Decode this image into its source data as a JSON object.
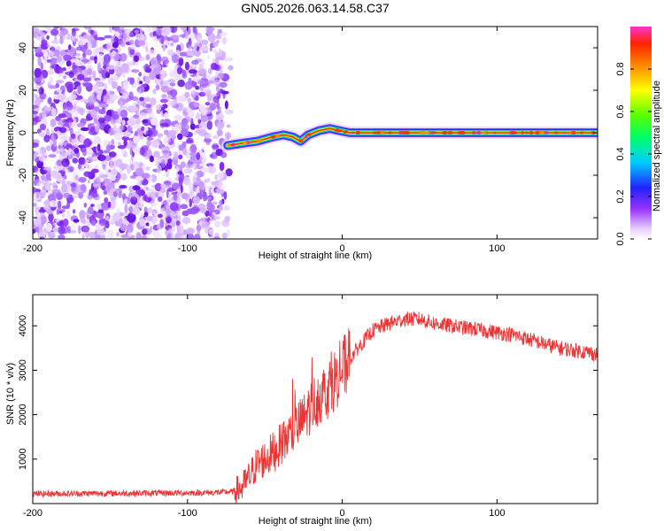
{
  "title": "GN05.2026.063.14.58.C37",
  "colors": {
    "snr_line": "#ee3333",
    "ridge_core": "#ff2222",
    "axis": "#000000"
  },
  "chart_data": [
    {
      "type": "heatmap",
      "name": "spectrogram",
      "xlabel": "Height of straight line (km)",
      "ylabel": "Frequency (Hz)",
      "xlim": [
        -200,
        165
      ],
      "ylim": [
        -50,
        50
      ],
      "xticks": [
        -200,
        -100,
        0,
        100
      ],
      "yticks": [
        -40,
        -20,
        0,
        20,
        40
      ],
      "noise_region_x": [
        -200,
        -72
      ],
      "ridge": {
        "x": [
          -74,
          -65,
          -55,
          -45,
          -38,
          -32,
          -27,
          -22,
          -15,
          -8,
          -2,
          5,
          40,
          100,
          165
        ],
        "y": [
          -6,
          -5,
          -4,
          -2,
          -1,
          -2,
          -4,
          -1,
          1,
          2,
          1,
          0,
          0,
          0,
          0
        ]
      },
      "colorbar": {
        "label": "Normalized spectral amplitude",
        "range": [
          0,
          1
        ],
        "ticks": [
          "0.0",
          "0.2",
          "0.4",
          "0.6",
          "0.8"
        ],
        "tick_values": [
          0.0,
          0.2,
          0.4,
          0.6,
          0.8
        ]
      }
    },
    {
      "type": "line",
      "name": "snr",
      "xlabel": "Height of straight line (km)",
      "ylabel": "SNR (10 * v/v)",
      "xlim": [
        -200,
        165
      ],
      "ylim": [
        0,
        4700
      ],
      "xticks": [
        -200,
        -100,
        0,
        100
      ],
      "yticks": [
        1000,
        2000,
        3000,
        4000
      ],
      "series": [
        {
          "name": "SNR",
          "x": [
            -200,
            -150,
            -100,
            -80,
            -70,
            -65,
            -60,
            -55,
            -50,
            -45,
            -40,
            -35,
            -30,
            -25,
            -20,
            -15,
            -10,
            -5,
            0,
            5,
            10,
            15,
            20,
            30,
            40,
            50,
            60,
            70,
            80,
            90,
            100,
            110,
            120,
            130,
            140,
            150,
            160,
            165
          ],
          "y": [
            220,
            230,
            240,
            250,
            270,
            350,
            600,
            900,
            1000,
            1150,
            1300,
            1500,
            1700,
            1900,
            2200,
            2400,
            2550,
            2800,
            3000,
            3250,
            3500,
            3700,
            3900,
            4050,
            4150,
            4150,
            4050,
            4000,
            3950,
            3900,
            3850,
            3800,
            3700,
            3600,
            3500,
            3450,
            3400,
            3350
          ]
        }
      ]
    }
  ]
}
